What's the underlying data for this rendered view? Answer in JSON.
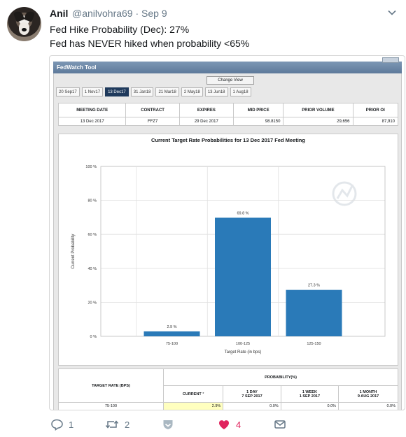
{
  "tweet": {
    "name": "Anil",
    "handle_time": "@anilvohra69 · Sep 9",
    "lines": [
      "Fed Hike Probability (Dec): 27%",
      "Fed has NEVER hiked when probability <65%"
    ]
  },
  "fedwatch": {
    "title": "FedWatch Tool",
    "change_view": "Change View",
    "tabs": [
      "20 Sep17",
      "1 Nov17",
      "13 Dec17",
      "31 Jan18",
      "21 Mar18",
      "2 May18",
      "13 Jun18",
      "1 Aug18"
    ],
    "active_tab": 2,
    "info_headers": [
      "MEETING DATE",
      "CONTRACT",
      "EXPIRES",
      "MID PRICE",
      "PRIOR VOLUME",
      "PRIOR OI"
    ],
    "info_row": [
      "13 Dec 2017",
      "FFZ7",
      "29 Dec 2017",
      "98.8150",
      "29,656",
      "87,910"
    ],
    "prob_table": {
      "col1": "TARGET RATE (BPS)",
      "group": "PROBABILITY(%)",
      "current": "CURRENT",
      "day_label": "1 DAY",
      "day_date": "7 SEP 2017",
      "week_label": "1 WEEK",
      "week_date": "1 SEP 2017",
      "month_label": "1 MONTH",
      "month_date": "9 AUG 2017",
      "rows": [
        [
          "75-100",
          "2.9%",
          "0.0%",
          "0.0%",
          "0.0%"
        ]
      ]
    }
  },
  "chart_data": {
    "type": "bar",
    "title": "Current Target Rate Probabilities for 13 Dec 2017 Fed Meeting",
    "xlabel": "Target Rate (in bps)",
    "ylabel": "Current Probability",
    "categories": [
      "75-100",
      "100-125",
      "125-150"
    ],
    "values": [
      2.9,
      69.8,
      27.3
    ],
    "data_labels": [
      "2.9 %",
      "69.8 %",
      "27.3 %"
    ],
    "yticks": [
      "0 %",
      "20 %",
      "40 %",
      "60 %",
      "80 %",
      "100 %"
    ],
    "ylim": [
      0,
      100
    ],
    "bar_color": "#2a7ab8",
    "grid": true
  },
  "actions": {
    "reply_count": "1",
    "retweet_count": "2",
    "like_count": "4",
    "like_color": "#e0245e"
  }
}
